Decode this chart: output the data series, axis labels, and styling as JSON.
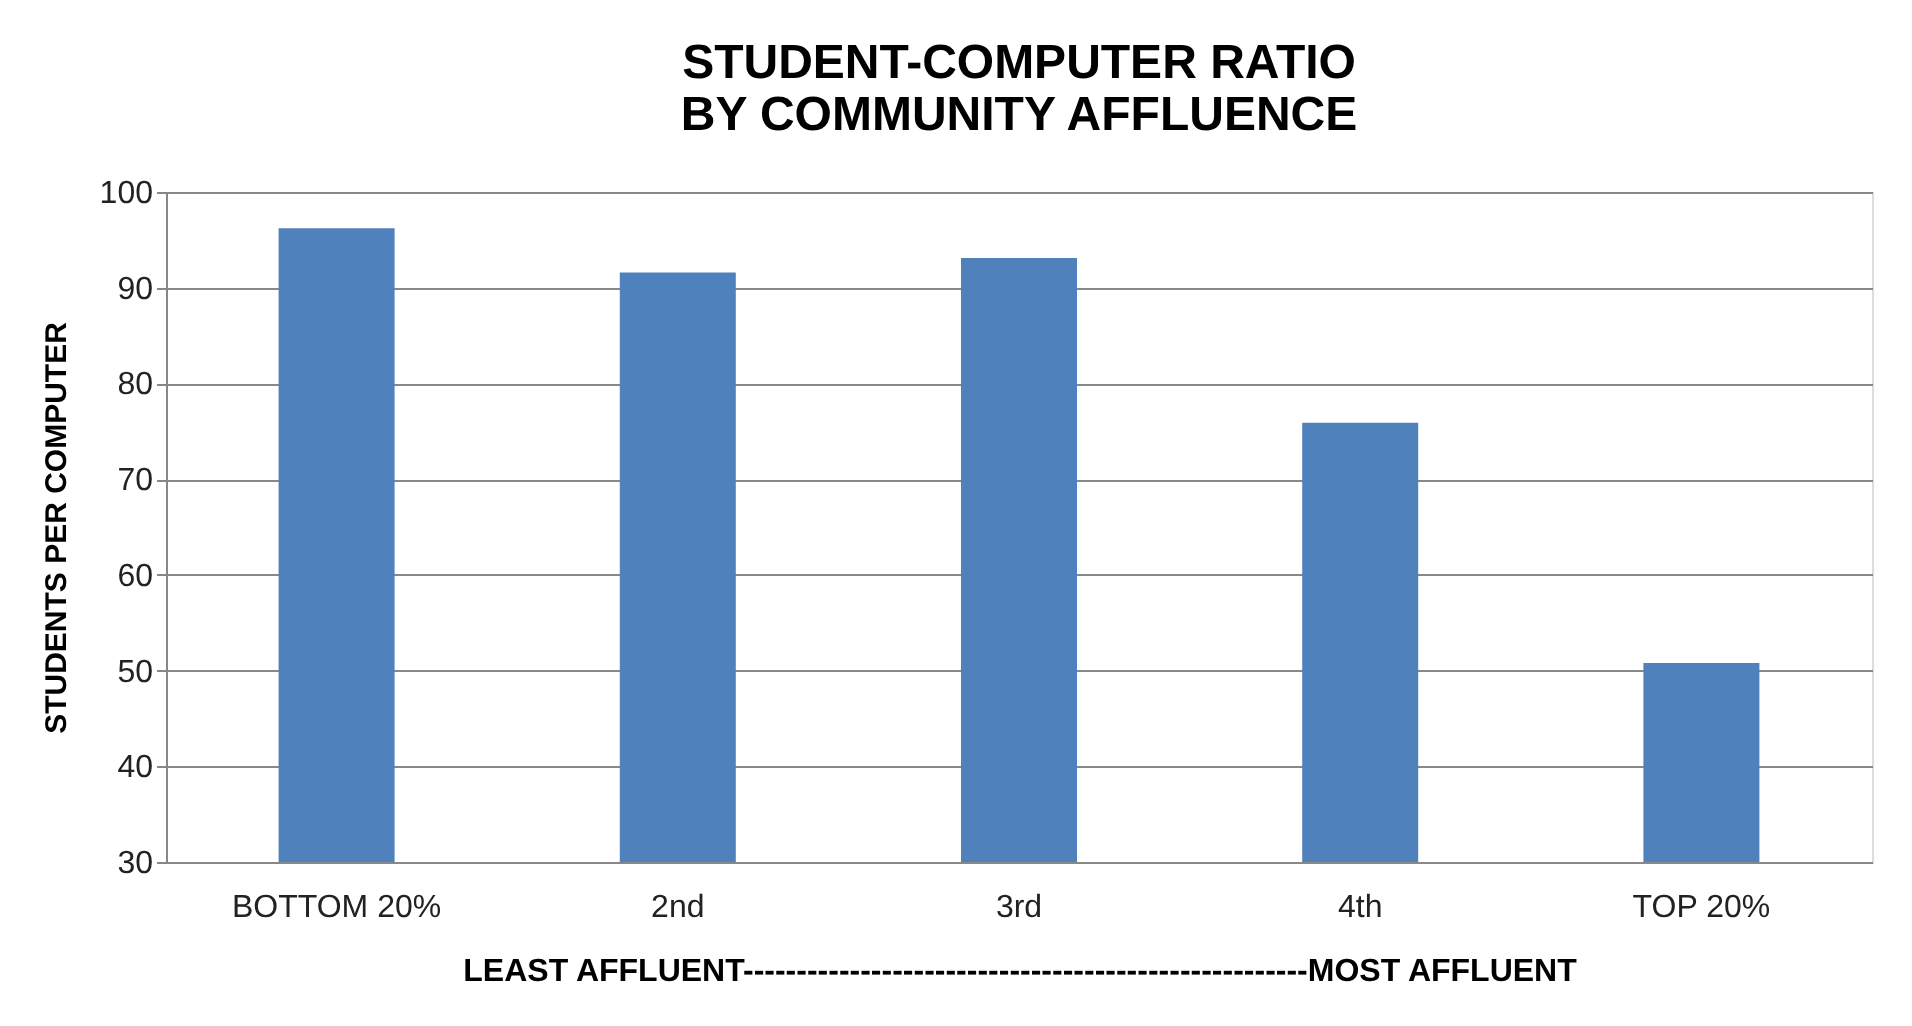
{
  "chart_data": {
    "type": "bar",
    "title": "STUDENT-COMPUTER RATIO\nBY COMMUNITY AFFLUENCE",
    "ylabel": "STUDENTS PER COMPUTER",
    "xlabel": "LEAST AFFLUENT-----------------------------------------------------MOST  AFFLUENT",
    "categories": [
      "BOTTOM 20%",
      "2nd",
      "3rd",
      "4th",
      "TOP 20%"
    ],
    "values": [
      96.2,
      91.6,
      93.1,
      75.9,
      50.8
    ],
    "color": "#4f81bd",
    "ylim": [
      30,
      100
    ],
    "yticks": [
      30,
      40,
      50,
      60,
      70,
      80,
      90,
      100
    ],
    "grid": "y"
  }
}
